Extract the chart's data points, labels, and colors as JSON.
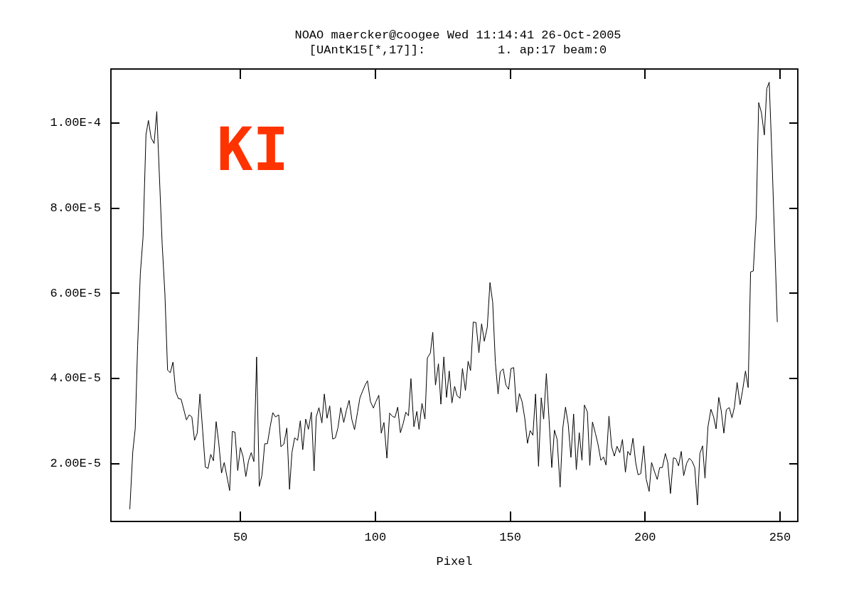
{
  "chart_data": {
    "type": "line",
    "title": "NOAO maercker@coogee Wed 11:14:41 26-Oct-2005",
    "subtitle": "[UAntK15[*,17]]:          1. ap:17 beam:0",
    "xlabel": "Pixel",
    "annotations": [
      "KI"
    ],
    "xlim": [
      2,
      256.6
    ],
    "xticks": [
      50,
      100,
      150,
      200,
      250
    ],
    "ylim": [
      6.33e-06,
      0.0001127
    ],
    "yticks": [
      {
        "value": 2e-05,
        "label": "2.00E-5"
      },
      {
        "value": 4e-05,
        "label": "4.00E-5"
      },
      {
        "value": 6e-05,
        "label": "6.00E-5"
      },
      {
        "value": 8e-05,
        "label": "8.00E-5"
      },
      {
        "value": 0.0001,
        "label": "1.00E-4"
      }
    ],
    "series": [
      {
        "color": "#000000",
        "x": [
          9.0,
          10.1,
          11.0,
          11.9,
          12.9,
          13.9,
          15.0,
          15.9,
          16.9,
          18.0,
          19.0,
          21.0,
          22.0,
          23.0,
          24.0,
          25.0,
          26.0,
          27.0,
          28.0,
          30.0,
          31.0,
          32.0,
          33.0,
          34.0,
          35.0,
          36.0,
          37.0,
          38.0,
          39.0,
          40.0,
          41.0,
          42.0,
          43.0,
          44.0,
          45.0,
          46.0,
          47.0,
          48.0,
          49.0,
          50.0,
          51.0,
          52.0,
          53.0,
          54.0,
          55.0,
          56.0,
          57.0,
          58.0,
          59.0,
          60.0,
          61.0,
          62.0,
          63.0,
          64.2,
          65.0,
          66.1,
          67.2,
          68.2,
          69.1,
          70.1,
          71.2,
          72.2,
          73.1,
          74.2,
          75.2,
          76.3,
          77.3,
          78.1,
          79.1,
          80.2,
          81.1,
          82.1,
          83.1,
          84.2,
          85.2,
          86.2,
          87.2,
          88.3,
          89.3,
          90.3,
          91.3,
          92.3,
          93.4,
          94.3,
          95.3,
          96.3,
          97.1,
          98.2,
          99.3,
          100.2,
          101.3,
          102.2,
          103.2,
          104.3,
          105.3,
          106.4,
          107.3,
          108.3,
          109.3,
          110.3,
          111.3,
          112.3,
          113.2,
          114.3,
          115.4,
          116.2,
          117.3,
          118.4,
          119.3,
          120.4,
          121.3,
          122.3,
          123.4,
          124.3,
          125.4,
          126.4,
          127.4,
          128.4,
          129.4,
          130.3,
          131.4,
          132.3,
          133.4,
          134.4,
          135.3,
          136.3,
          137.3,
          138.4,
          139.4,
          140.4,
          141.5,
          142.5,
          143.5,
          144.5,
          145.5,
          146.3,
          147.4,
          148.4,
          149.4,
          150.3,
          151.3,
          152.4,
          153.4,
          154.4,
          155.4,
          156.4,
          157.4,
          158.4,
          159.4,
          160.5,
          161.5,
          162.4,
          163.4,
          164.4,
          165.4,
          166.4,
          167.4,
          168.5,
          169.5,
          170.5,
          171.5,
          172.5,
          173.5,
          174.5,
          175.6,
          176.6,
          177.5,
          178.6,
          179.5,
          180.5,
          181.6,
          182.5,
          183.6,
          184.6,
          185.5,
          186.6,
          187.6,
          188.6,
          189.6,
          190.6,
          191.6,
          192.7,
          193.6,
          194.5,
          195.5,
          196.5,
          197.4,
          198.4,
          199.5,
          200.4,
          201.5,
          202.4,
          203.4,
          204.5,
          205.4,
          206.4,
          207.5,
          208.4,
          209.4,
          210.5,
          211.4,
          212.4,
          213.4,
          214.3,
          215.4,
          216.4,
          217.4,
          218.4,
          219.4,
          220.3,
          221.3,
          222.2,
          223.3,
          224.4,
          225.4,
          226.3,
          227.3,
          228.2,
          229.2,
          230.1,
          231.2,
          232.2,
          233.1,
          234.1,
          235.2,
          236.1,
          237.2,
          238.2,
          239.1,
          240.1,
          241.2,
          242.1,
          243.1,
          244.2,
          245.1,
          246.0,
          246.9,
          249.0
        ],
        "values": [
          9.2e-06,
          2.27e-05,
          2.81e-05,
          4.77e-05,
          6.46e-05,
          7.31e-05,
          9.73e-05,
          0.0001006,
          9.65e-05,
          9.52e-05,
          0.0001027,
          7.15e-05,
          6e-05,
          4.19e-05,
          4.13e-05,
          4.38e-05,
          3.69e-05,
          3.52e-05,
          3.51e-05,
          3.02e-05,
          3.14e-05,
          3.09e-05,
          2.54e-05,
          2.71e-05,
          3.63e-05,
          2.77e-05,
          1.91e-05,
          1.88e-05,
          2.21e-05,
          2.06e-05,
          2.98e-05,
          2.46e-05,
          1.77e-05,
          2.02e-05,
          1.69e-05,
          1.36e-05,
          2.75e-05,
          2.73e-05,
          1.83e-05,
          2.37e-05,
          2.15e-05,
          1.69e-05,
          2.06e-05,
          2.25e-05,
          2.04e-05,
          4.5e-05,
          1.46e-05,
          1.73e-05,
          2.46e-05,
          2.46e-05,
          2.85e-05,
          3.19e-05,
          3.09e-05,
          3.14e-05,
          2.39e-05,
          2.45e-05,
          2.83e-05,
          1.39e-05,
          2.25e-05,
          2.6e-05,
          2.54e-05,
          3e-05,
          2.32e-05,
          3.04e-05,
          2.8e-05,
          3.2e-05,
          1.82e-05,
          3.09e-05,
          3.31e-05,
          2.95e-05,
          3.63e-05,
          3.06e-05,
          3.35e-05,
          2.57e-05,
          2.6e-05,
          2.85e-05,
          3.31e-05,
          2.96e-05,
          3.25e-05,
          3.48e-05,
          3.03e-05,
          2.79e-05,
          3.2e-05,
          3.54e-05,
          3.7e-05,
          3.85e-05,
          3.94e-05,
          3.45e-05,
          3.3e-05,
          3.45e-05,
          3.6e-05,
          2.71e-05,
          2.96e-05,
          2.12e-05,
          3.18e-05,
          3.1e-05,
          3.08e-05,
          3.32e-05,
          2.72e-05,
          2.93e-05,
          3.2e-05,
          3.12e-05,
          3.99e-05,
          2.86e-05,
          3.22e-05,
          2.8e-05,
          3.41e-05,
          3.04e-05,
          4.48e-05,
          4.59e-05,
          5.08e-05,
          3.84e-05,
          4.34e-05,
          3.39e-05,
          4.5e-05,
          3.55e-05,
          4.17e-05,
          3.42e-05,
          3.81e-05,
          3.59e-05,
          3.53e-05,
          4.23e-05,
          3.71e-05,
          4.4e-05,
          4.18e-05,
          5.32e-05,
          5.31e-05,
          4.6e-05,
          5.28e-05,
          4.87e-05,
          5.2e-05,
          6.25e-05,
          5.79e-05,
          4.37e-05,
          3.63e-05,
          4.15e-05,
          4.22e-05,
          3.84e-05,
          3.74e-05,
          4.23e-05,
          4.25e-05,
          3.2e-05,
          3.64e-05,
          3.45e-05,
          3.06e-05,
          2.47e-05,
          2.77e-05,
          2.66e-05,
          3.63e-05,
          1.93e-05,
          3.54e-05,
          3.04e-05,
          4.11e-05,
          3.03e-05,
          1.9e-05,
          2.78e-05,
          2.56e-05,
          1.44e-05,
          2.83e-05,
          3.32e-05,
          2.92e-05,
          2.14e-05,
          3.16e-05,
          1.85e-05,
          2.72e-05,
          2.07e-05,
          3.37e-05,
          3.21e-05,
          1.95e-05,
          2.97e-05,
          2.7e-05,
          2.46e-05,
          2.07e-05,
          2.15e-05,
          1.96e-05,
          3.11e-05,
          2.39e-05,
          2.17e-05,
          2.4e-05,
          2.25e-05,
          2.56e-05,
          1.79e-05,
          2.28e-05,
          2.19e-05,
          2.59e-05,
          2.02e-05,
          1.73e-05,
          1.76e-05,
          2.41e-05,
          1.63e-05,
          1.34e-05,
          2.02e-05,
          1.82e-05,
          1.62e-05,
          1.9e-05,
          1.9e-05,
          2.23e-05,
          2.02e-05,
          1.29e-05,
          2.13e-05,
          2.11e-05,
          1.94e-05,
          2.28e-05,
          1.71e-05,
          2e-05,
          2.12e-05,
          2.05e-05,
          1.9e-05,
          1.02e-05,
          2.23e-05,
          2.41e-05,
          1.65e-05,
          2.86e-05,
          3.27e-05,
          3.09e-05,
          2.81e-05,
          3.55e-05,
          3.24e-05,
          2.71e-05,
          3.26e-05,
          3.31e-05,
          3.07e-05,
          3.32e-05,
          3.9e-05,
          3.38e-05,
          3.7e-05,
          4.17e-05,
          3.78e-05,
          6.5e-05,
          6.52e-05,
          7.81e-05,
          0.0001048,
          0.0001025,
          9.72e-05,
          0.0001081,
          0.0001096,
          9.42e-05,
          5.32e-05
        ]
      }
    ]
  }
}
